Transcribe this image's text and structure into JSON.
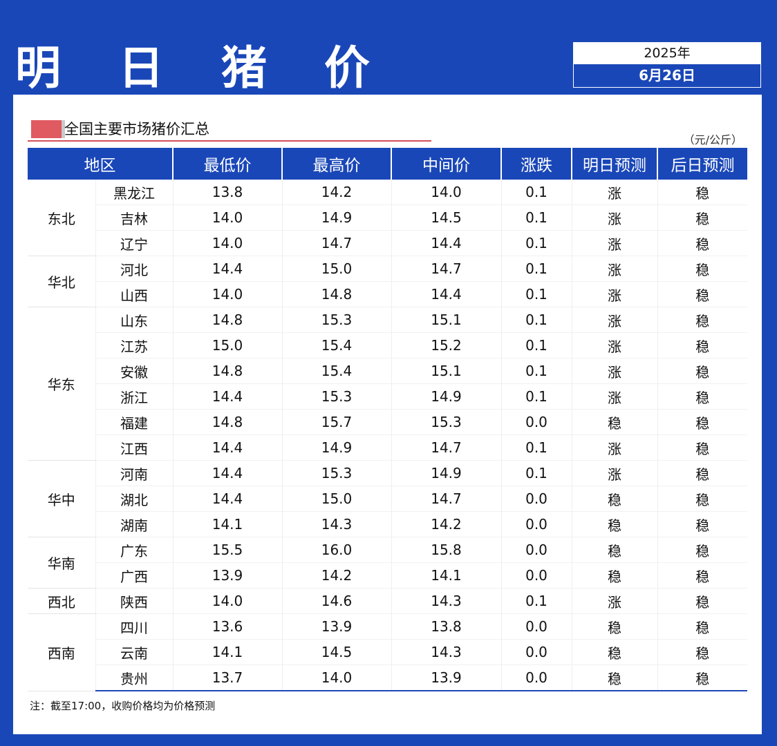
{
  "header": {
    "title": "明 日 猪 价",
    "year": "2025年",
    "date": "6月26日"
  },
  "panel": {
    "subtitle": "全国主要市场猪价汇总",
    "unit": "（元/公斤）",
    "note": "注：截至17:00，收购价格均为价格预测"
  },
  "table": {
    "headers": [
      "地区",
      "最低价",
      "最高价",
      "中间价",
      "涨跌",
      "明日预测",
      "后日预测"
    ],
    "regions": [
      {
        "name": "东北",
        "rows": [
          {
            "province": "黑龙江",
            "low": "13.8",
            "high": "14.2",
            "mid": "14.0",
            "change": "0.1",
            "tomorrow": "涨",
            "after": "稳"
          },
          {
            "province": "吉林",
            "low": "14.0",
            "high": "14.9",
            "mid": "14.5",
            "change": "0.1",
            "tomorrow": "涨",
            "after": "稳"
          },
          {
            "province": "辽宁",
            "low": "14.0",
            "high": "14.7",
            "mid": "14.4",
            "change": "0.1",
            "tomorrow": "涨",
            "after": "稳"
          }
        ]
      },
      {
        "name": "华北",
        "rows": [
          {
            "province": "河北",
            "low": "14.4",
            "high": "15.0",
            "mid": "14.7",
            "change": "0.1",
            "tomorrow": "涨",
            "after": "稳"
          },
          {
            "province": "山西",
            "low": "14.0",
            "high": "14.8",
            "mid": "14.4",
            "change": "0.1",
            "tomorrow": "涨",
            "after": "稳"
          }
        ]
      },
      {
        "name": "华东",
        "rows": [
          {
            "province": "山东",
            "low": "14.8",
            "high": "15.3",
            "mid": "15.1",
            "change": "0.1",
            "tomorrow": "涨",
            "after": "稳"
          },
          {
            "province": "江苏",
            "low": "15.0",
            "high": "15.4",
            "mid": "15.2",
            "change": "0.1",
            "tomorrow": "涨",
            "after": "稳"
          },
          {
            "province": "安徽",
            "low": "14.8",
            "high": "15.4",
            "mid": "15.1",
            "change": "0.1",
            "tomorrow": "涨",
            "after": "稳"
          },
          {
            "province": "浙江",
            "low": "14.4",
            "high": "15.3",
            "mid": "14.9",
            "change": "0.1",
            "tomorrow": "涨",
            "after": "稳"
          },
          {
            "province": "福建",
            "low": "14.8",
            "high": "15.7",
            "mid": "15.3",
            "change": "0.0",
            "tomorrow": "稳",
            "after": "稳"
          },
          {
            "province": "江西",
            "low": "14.4",
            "high": "14.9",
            "mid": "14.7",
            "change": "0.1",
            "tomorrow": "涨",
            "after": "稳"
          }
        ]
      },
      {
        "name": "华中",
        "rows": [
          {
            "province": "河南",
            "low": "14.4",
            "high": "15.3",
            "mid": "14.9",
            "change": "0.1",
            "tomorrow": "涨",
            "after": "稳"
          },
          {
            "province": "湖北",
            "low": "14.4",
            "high": "15.0",
            "mid": "14.7",
            "change": "0.0",
            "tomorrow": "稳",
            "after": "稳"
          },
          {
            "province": "湖南",
            "low": "14.1",
            "high": "14.3",
            "mid": "14.2",
            "change": "0.0",
            "tomorrow": "稳",
            "after": "稳"
          }
        ]
      },
      {
        "name": "华南",
        "rows": [
          {
            "province": "广东",
            "low": "15.5",
            "high": "16.0",
            "mid": "15.8",
            "change": "0.0",
            "tomorrow": "稳",
            "after": "稳"
          },
          {
            "province": "广西",
            "low": "13.9",
            "high": "14.2",
            "mid": "14.1",
            "change": "0.0",
            "tomorrow": "稳",
            "after": "稳"
          }
        ]
      },
      {
        "name": "西北",
        "rows": [
          {
            "province": "陕西",
            "low": "14.0",
            "high": "14.6",
            "mid": "14.3",
            "change": "0.1",
            "tomorrow": "涨",
            "after": "稳"
          }
        ]
      },
      {
        "name": "西南",
        "rows": [
          {
            "province": "四川",
            "low": "13.6",
            "high": "13.9",
            "mid": "13.8",
            "change": "0.0",
            "tomorrow": "稳",
            "after": "稳"
          },
          {
            "province": "云南",
            "low": "14.1",
            "high": "14.5",
            "mid": "14.3",
            "change": "0.0",
            "tomorrow": "稳",
            "after": "稳"
          },
          {
            "province": "贵州",
            "low": "13.7",
            "high": "14.0",
            "mid": "13.9",
            "change": "0.0",
            "tomorrow": "稳",
            "after": "稳"
          }
        ]
      }
    ]
  },
  "colors": {
    "brand_blue": "#1a47b8",
    "rise_red": "#e0202a",
    "marker_red": "#e05a62"
  }
}
